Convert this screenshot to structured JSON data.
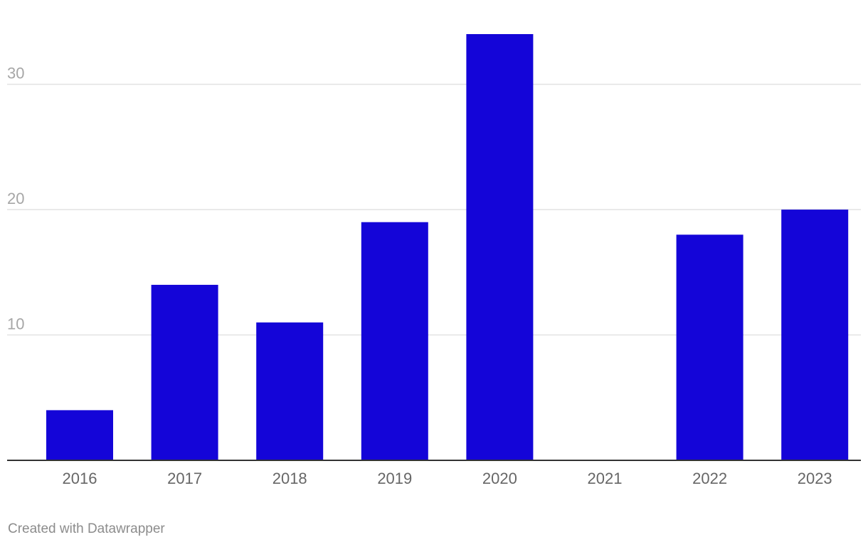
{
  "chart_data": {
    "type": "bar",
    "categories": [
      "2016",
      "2017",
      "2018",
      "2019",
      "2020",
      "2021",
      "2022",
      "2023"
    ],
    "values": [
      4,
      14,
      11,
      19,
      34,
      0,
      18,
      20
    ],
    "yticks": [
      10,
      20,
      30
    ],
    "ylim": [
      0,
      34
    ],
    "grid": true,
    "bar_color": "#1405d8",
    "gridline_color": "#e2e2e2",
    "baseline_color": "#333333",
    "title": "",
    "xlabel": "",
    "ylabel": ""
  },
  "footer": {
    "credit": "Created with Datawrapper"
  }
}
